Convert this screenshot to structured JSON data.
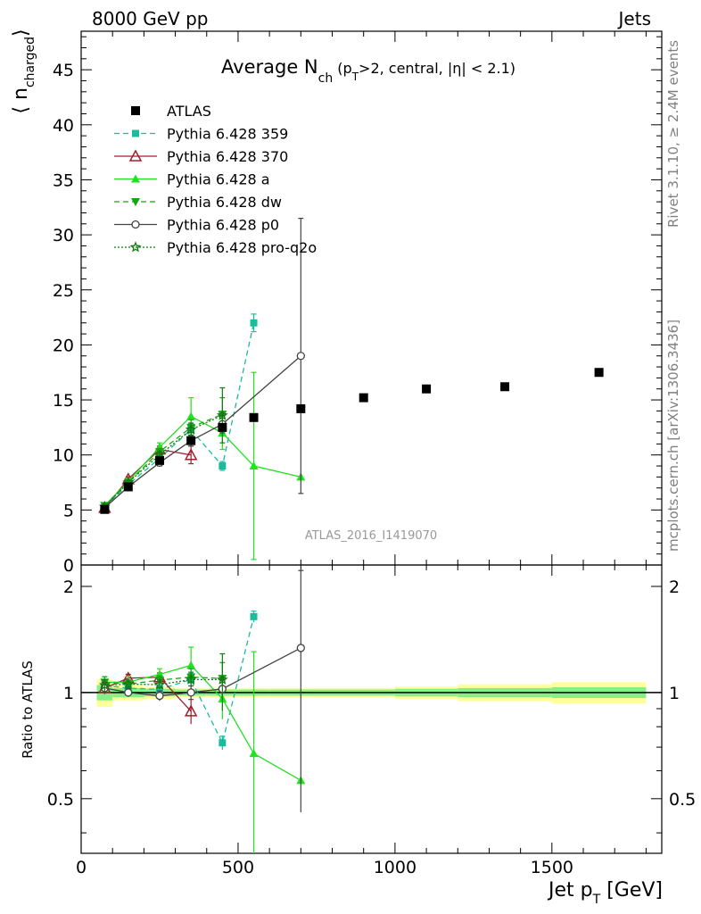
{
  "header": {
    "left": "8000 GeV pp",
    "right": "Jets"
  },
  "side_labels": {
    "rivet": "Rivet 3.1.10, ≥ 2.4M events",
    "mcplots": "mcplots.cern.ch [arXiv:1306.3436]"
  },
  "chart_data": {
    "type": "line",
    "title": "Average N_ch (p_T>2, central, |η| < 2.1)",
    "title_parts": {
      "main": "Average N",
      "sub1": "ch",
      "mid": " (p",
      "sub2": "T",
      "rest": ">2, central, |η| < 2.1)"
    },
    "watermark": "ATLAS_2016_I1419070",
    "xlabel": "Jet p_T [GeV]",
    "xlabel_parts": {
      "main": "Jet p",
      "sub": "T",
      "rest": " [GeV]"
    },
    "ylabel": "⟨ n_charged ⟩",
    "ylabel_parts": {
      "open": "⟨ n",
      "sub": "charged",
      "close": "⟩"
    },
    "ratio_ylabel": "Ratio to ATLAS",
    "xlim": [
      0,
      1850
    ],
    "ylim": [
      0,
      48.5
    ],
    "ratio_ylim": [
      0.35,
      2.3
    ],
    "xticks": [
      0,
      500,
      1000,
      1500
    ],
    "yticks": [
      0,
      5,
      10,
      15,
      20,
      25,
      30,
      35,
      40,
      45
    ],
    "ratio_yticks": [
      0.5,
      1,
      2
    ],
    "legend_position": "top-left",
    "data": {
      "name": "ATLAS",
      "color": "#000000",
      "x": [
        75,
        150,
        250,
        350,
        450,
        550,
        700,
        900,
        1100,
        1350,
        1650
      ],
      "y": [
        5.05,
        7.1,
        9.5,
        11.3,
        12.5,
        13.4,
        14.2,
        15.2,
        16.0,
        16.2,
        17.5
      ],
      "bins": [
        [
          50,
          100
        ],
        [
          100,
          200
        ],
        [
          200,
          300
        ],
        [
          300,
          400
        ],
        [
          400,
          500
        ],
        [
          500,
          600
        ],
        [
          600,
          800
        ],
        [
          800,
          1000
        ],
        [
          1000,
          1200
        ],
        [
          1200,
          1500
        ],
        [
          1500,
          1800
        ]
      ],
      "band_inner": [
        0.05,
        0.03,
        0.025,
        0.02,
        0.02,
        0.02,
        0.02,
        0.02,
        0.025,
        0.03,
        0.035
      ],
      "band_outer": [
        0.09,
        0.05,
        0.04,
        0.03,
        0.03,
        0.03,
        0.03,
        0.03,
        0.04,
        0.055,
        0.07
      ]
    },
    "series": [
      {
        "name": "Pythia 6.428 359",
        "color": "#1abc9c",
        "dash": "6,4",
        "marker": "square",
        "x": [
          75,
          150,
          250,
          350,
          450,
          550
        ],
        "y": [
          5.3,
          7.3,
          9.7,
          12.3,
          9.0,
          22.0
        ],
        "err": [
          0.2,
          0.2,
          0.3,
          0.5,
          0.4,
          0.8
        ]
      },
      {
        "name": "Pythia 6.428 370",
        "color": "#a51d2d",
        "dash": "",
        "marker": "triangle-open",
        "x": [
          75,
          150,
          250,
          350
        ],
        "y": [
          5.2,
          7.8,
          10.5,
          10.0
        ],
        "err": [
          0.2,
          0.2,
          0.3,
          0.8
        ]
      },
      {
        "name": "Pythia 6.428 a",
        "color": "#22e022",
        "dash": "",
        "marker": "triangle",
        "x": [
          75,
          150,
          250,
          350,
          450,
          550,
          700
        ],
        "y": [
          5.4,
          7.6,
          10.7,
          13.5,
          12.0,
          9.0,
          8.0
        ],
        "err": [
          0.2,
          0.3,
          0.4,
          1.7,
          1.5,
          8.5,
          0
        ]
      },
      {
        "name": "Pythia 6.428 dw",
        "color": "#15a515",
        "dash": "6,4",
        "marker": "triangle-down",
        "x": [
          75,
          150,
          250,
          350,
          450
        ],
        "y": [
          5.4,
          7.5,
          10.3,
          12.5,
          13.7
        ],
        "err": [
          0.2,
          0.2,
          0.3,
          0.7,
          1.5
        ]
      },
      {
        "name": "Pythia 6.428 p0",
        "color": "#444444",
        "dash": "",
        "marker": "circle-open",
        "x": [
          75,
          150,
          250,
          350,
          450,
          700
        ],
        "y": [
          5.2,
          7.1,
          9.3,
          11.3,
          12.8,
          19.0
        ],
        "err": [
          0.2,
          0.2,
          0.3,
          0.5,
          0.8,
          12.5
        ]
      },
      {
        "name": "Pythia 6.428 pro-q2o",
        "color": "#127a12",
        "dash": "2,2",
        "marker": "star",
        "x": [
          75,
          150,
          250,
          350,
          450
        ],
        "y": [
          5.3,
          7.5,
          10.0,
          12.3,
          13.6
        ],
        "err": [
          0.2,
          0.2,
          0.3,
          0.6,
          2.5
        ]
      }
    ]
  }
}
